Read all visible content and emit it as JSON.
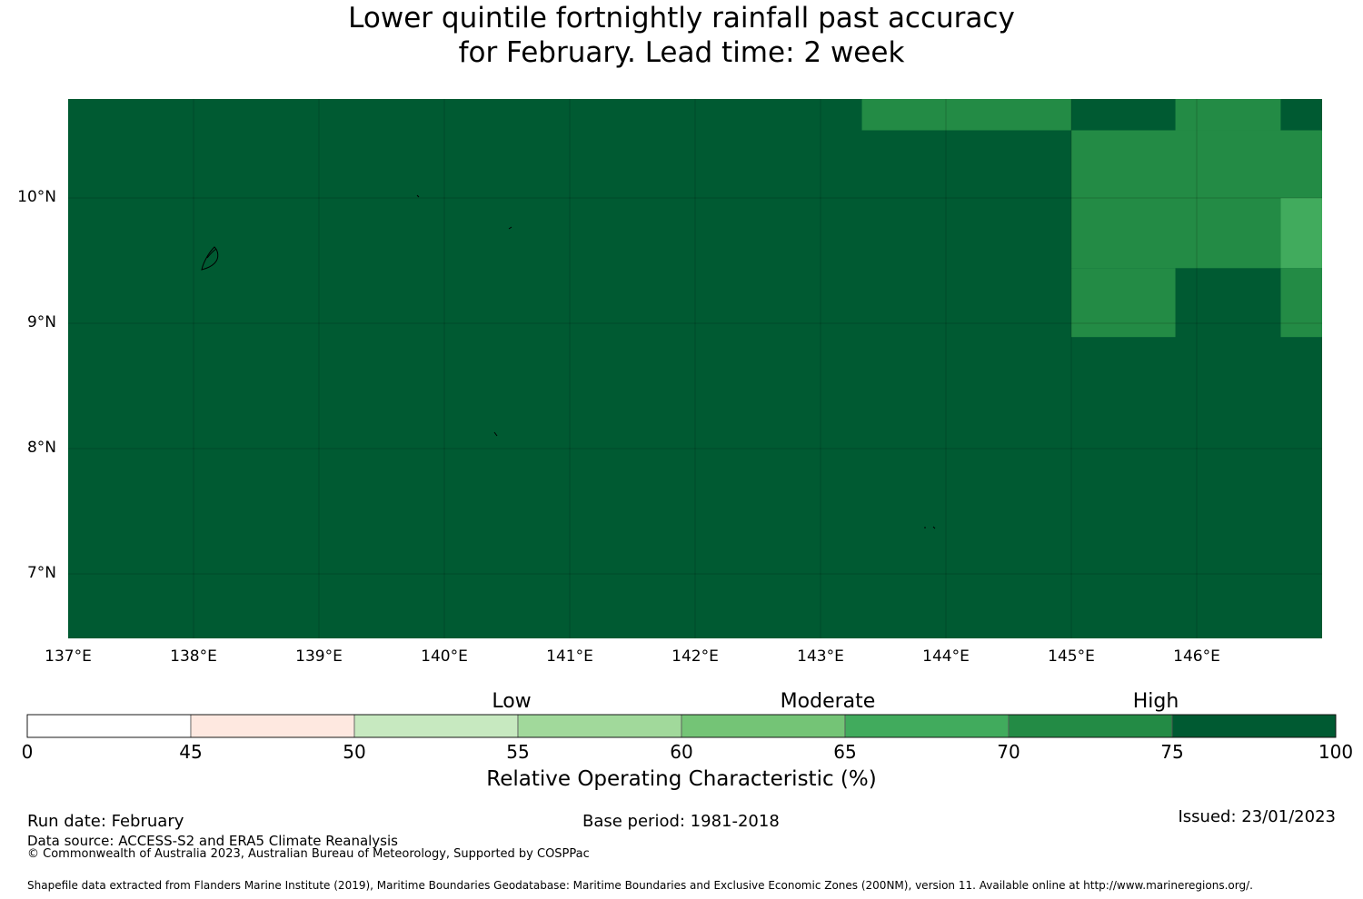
{
  "title": {
    "line1": "Lower quintile fortnightly rainfall past accuracy",
    "line2": "for February. Lead time: 2 week"
  },
  "map": {
    "base_color": "#005a32",
    "lat_ticks": [
      "10°N",
      "9°N",
      "8°N",
      "7°N"
    ],
    "lon_ticks": [
      "137°E",
      "138°E",
      "139°E",
      "140°E",
      "141°E",
      "142°E",
      "143°E",
      "144°E",
      "145°E",
      "146°E"
    ],
    "grid_cells": [
      {
        "lon_range": [
          143.33,
          144.0
        ],
        "lat_range": [
          10.54,
          10.8
        ],
        "category": "70-75"
      },
      {
        "lon_range": [
          144.0,
          145.0
        ],
        "lat_range": [
          10.54,
          10.8
        ],
        "category": "70-75"
      },
      {
        "lon_range": [
          145.0,
          145.83
        ],
        "lat_range": [
          10.54,
          10.8
        ],
        "category": "75-100"
      },
      {
        "lon_range": [
          145.83,
          146.67
        ],
        "lat_range": [
          10.54,
          10.8
        ],
        "category": "70-75"
      },
      {
        "lon_range": [
          146.67,
          147.0
        ],
        "lat_range": [
          10.54,
          10.8
        ],
        "category": "75-100"
      },
      {
        "lon_range": [
          145.0,
          147.0
        ],
        "lat_range": [
          10.0,
          10.54
        ],
        "category": "70-75"
      },
      {
        "lon_range": [
          145.0,
          146.67
        ],
        "lat_range": [
          9.44,
          10.0
        ],
        "category": "70-75"
      },
      {
        "lon_range": [
          146.67,
          147.0
        ],
        "lat_range": [
          9.44,
          10.0
        ],
        "category": "65-70"
      },
      {
        "lon_range": [
          145.0,
          145.83
        ],
        "lat_range": [
          8.89,
          9.44
        ],
        "category": "70-75"
      },
      {
        "lon_range": [
          146.67,
          147.0
        ],
        "lat_range": [
          8.89,
          9.44
        ],
        "category": "70-75"
      }
    ]
  },
  "colorbar": {
    "bins": [
      {
        "from": 0,
        "to": 45,
        "color": "#ffffff"
      },
      {
        "from": 45,
        "to": 50,
        "color": "#fee8e0"
      },
      {
        "from": 50,
        "to": 55,
        "color": "#c7e9c0"
      },
      {
        "from": 55,
        "to": 60,
        "color": "#a1d99b"
      },
      {
        "from": 60,
        "to": 65,
        "color": "#74c476"
      },
      {
        "from": 65,
        "to": 70,
        "color": "#41ab5d"
      },
      {
        "from": 70,
        "to": 75,
        "color": "#238b45"
      },
      {
        "from": 75,
        "to": 100,
        "color": "#005a32"
      }
    ],
    "tick_labels": [
      "0",
      "45",
      "50",
      "55",
      "60",
      "65",
      "70",
      "75",
      "100"
    ],
    "categories": {
      "low": "Low",
      "moderate": "Moderate",
      "high": "High"
    },
    "title": "Relative Operating Characteristic (%)"
  },
  "footer": {
    "run_date": "Run date: February",
    "base_period": "Base period: 1981-2018",
    "issued": "Issued: 23/01/2023",
    "data_source": "Data source: ACCESS-S2 and ERA5 Climate Reanalysis",
    "copyright": "© Commonwealth of Australia 2023, Australian Bureau of Meteorology, Supported by COSPPac",
    "shapefile": "Shapefile data extracted from Flanders Marine Institute (2019), Maritime Boundaries Geodatabase: Maritime Boundaries and Exclusive Economic Zones (200NM), version 11. Available online at http://www.marineregions.org/."
  }
}
